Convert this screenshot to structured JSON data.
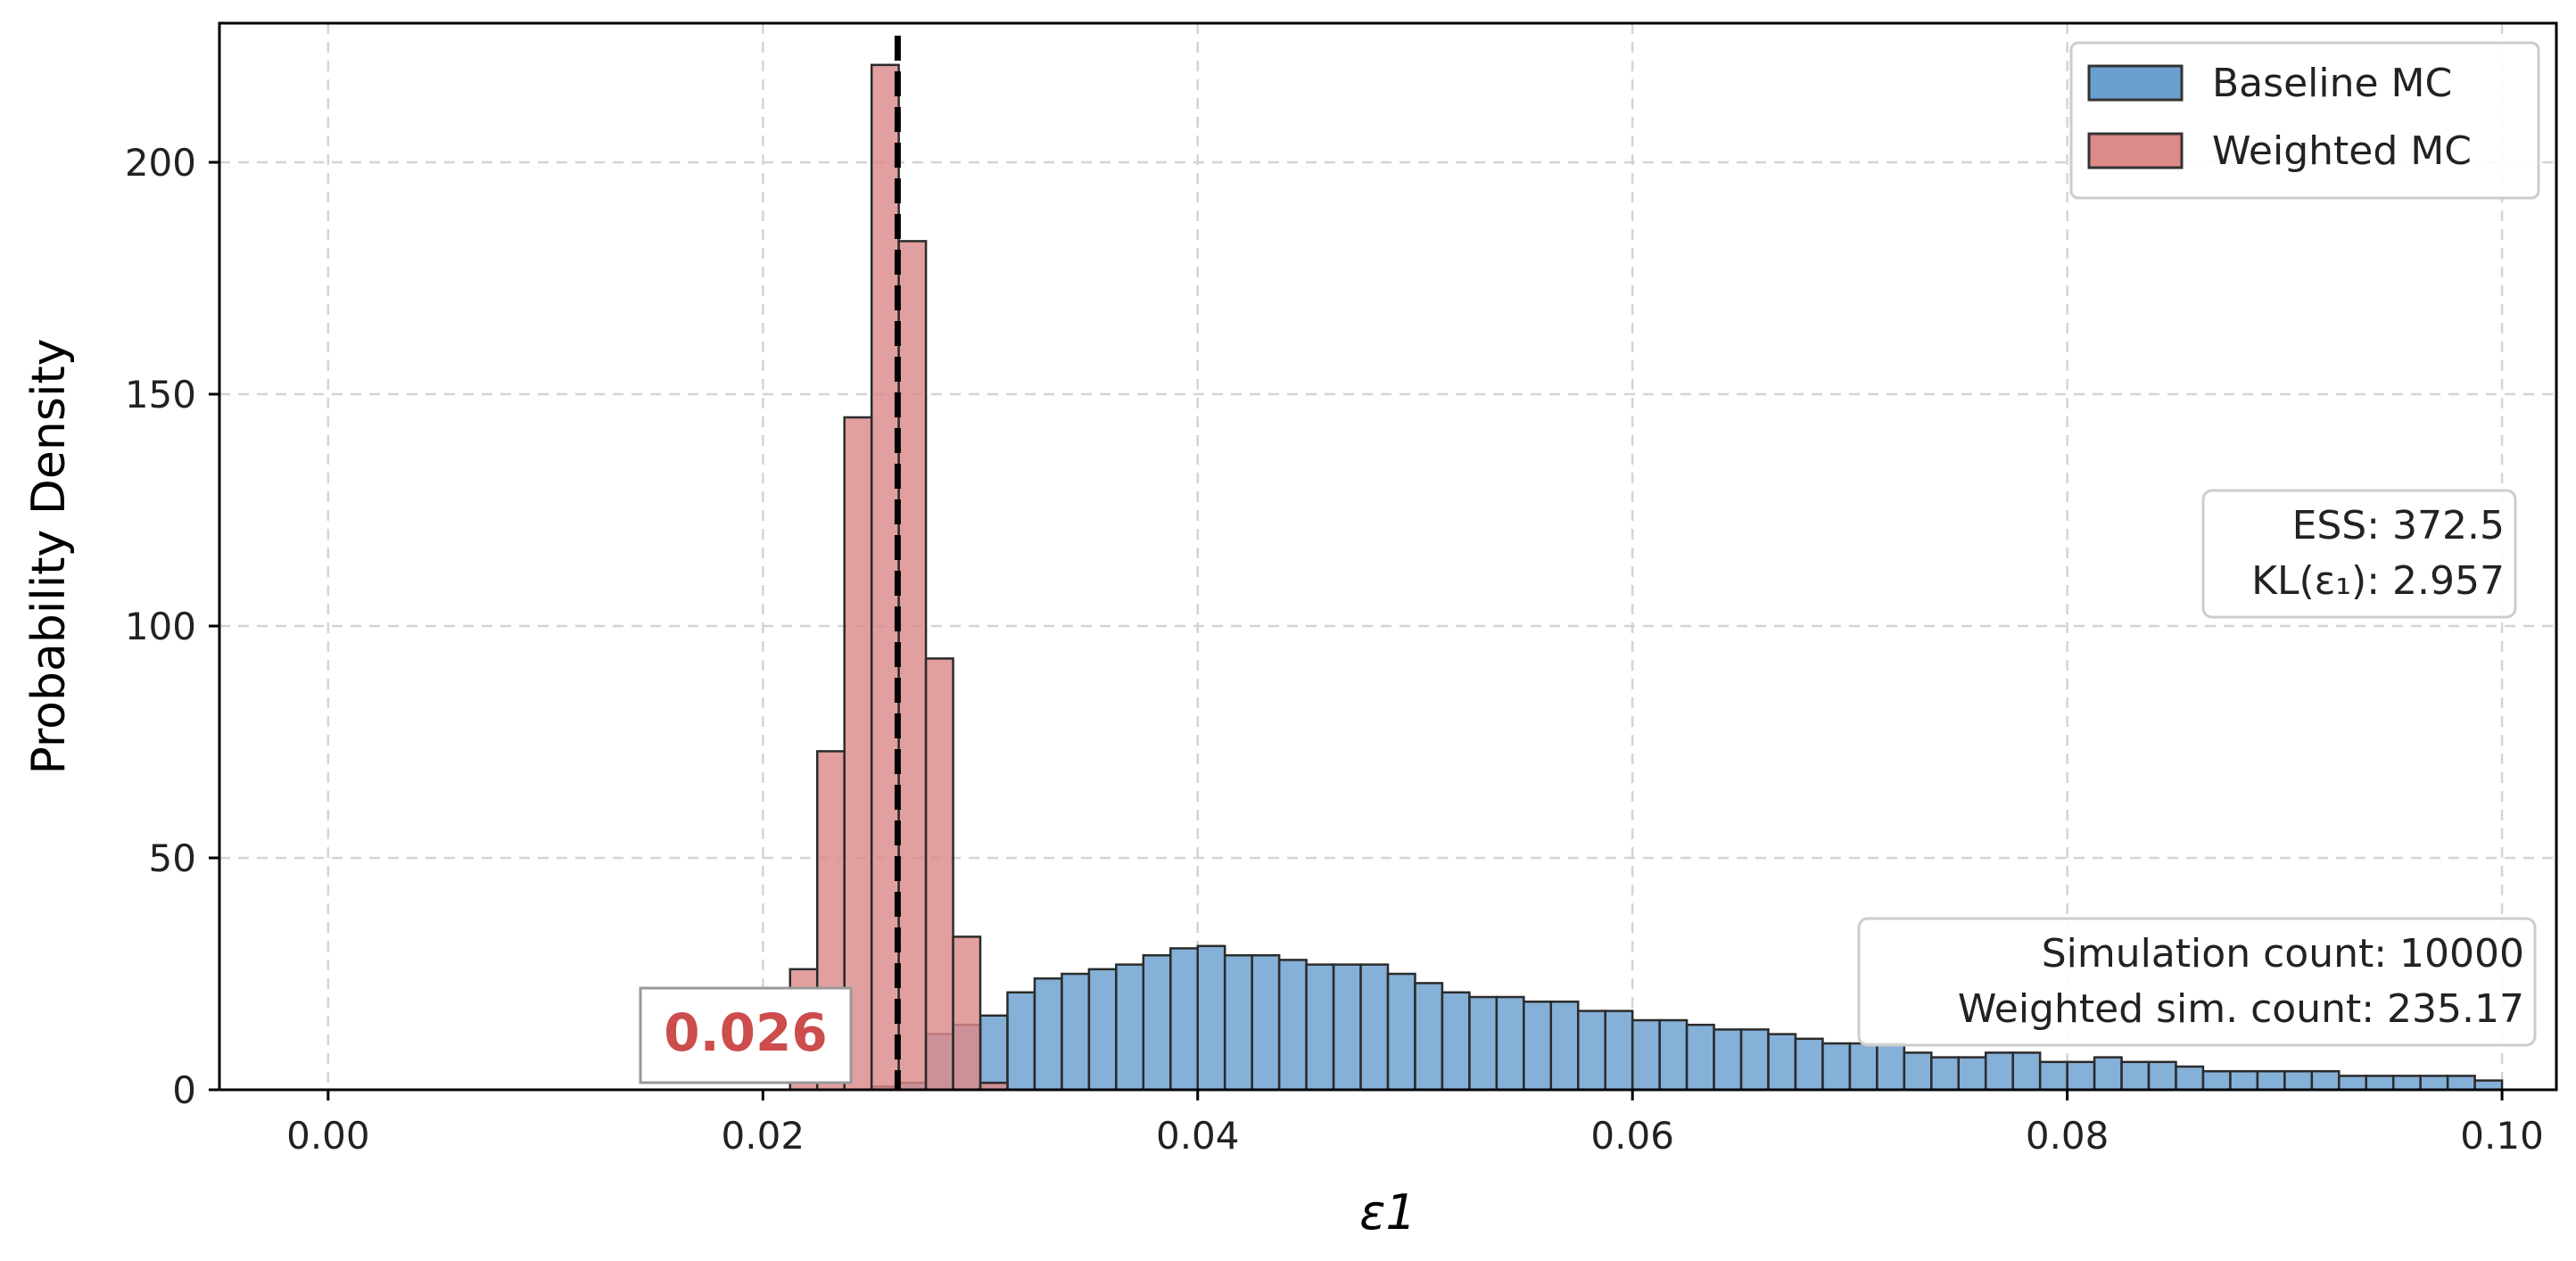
{
  "chart_data": {
    "type": "bar",
    "subtype": "overlaid-histogram",
    "xlabel": "ε1",
    "ylabel": "Probability Density",
    "xlim": [
      -0.005,
      0.1025
    ],
    "ylim": [
      0,
      230
    ],
    "xticks": [
      0.0,
      0.02,
      0.04,
      0.06,
      0.08,
      0.1
    ],
    "xtick_labels": [
      "0.00",
      "0.02",
      "0.04",
      "0.06",
      "0.08",
      "0.10"
    ],
    "yticks": [
      0,
      50,
      100,
      150,
      200
    ],
    "ytick_labels": [
      "0",
      "50",
      "100",
      "150",
      "200"
    ],
    "grid": true,
    "legend_position": "top-right",
    "series": [
      {
        "name": "Baseline MC",
        "color": "#6a9fce",
        "bin_start": 0.025,
        "bin_width": 0.00125,
        "values": [
          0.7,
          1.5,
          12,
          14,
          16,
          21,
          24,
          25,
          26,
          27,
          29,
          30.5,
          31,
          29,
          29,
          28,
          27,
          27,
          27,
          25,
          23,
          21,
          20,
          20,
          19,
          19,
          17,
          17,
          15,
          15,
          14,
          13,
          13,
          12,
          11,
          10,
          10,
          10,
          8,
          7,
          7,
          8,
          8,
          6,
          6,
          7,
          6,
          6,
          5,
          4,
          4,
          4,
          4,
          4,
          3,
          3,
          3,
          3,
          3,
          2
        ]
      },
      {
        "name": "Weighted MC",
        "color": "#dc8a8a",
        "bin_start": 0.02125,
        "bin_width": 0.00125,
        "values": [
          26,
          73,
          145,
          221,
          183,
          93,
          33,
          1.5
        ]
      }
    ],
    "reference_line": {
      "x": 0.0262,
      "style": "dashed",
      "color": "#000000"
    },
    "callout_label": "0.026",
    "callout_color": "#cd4c4c",
    "stats_box": [
      "ESS: 372.5",
      "KL(ε₁): 2.957"
    ],
    "count_box": [
      "Simulation count: 10000",
      "Weighted sim. count: 235.17"
    ]
  }
}
